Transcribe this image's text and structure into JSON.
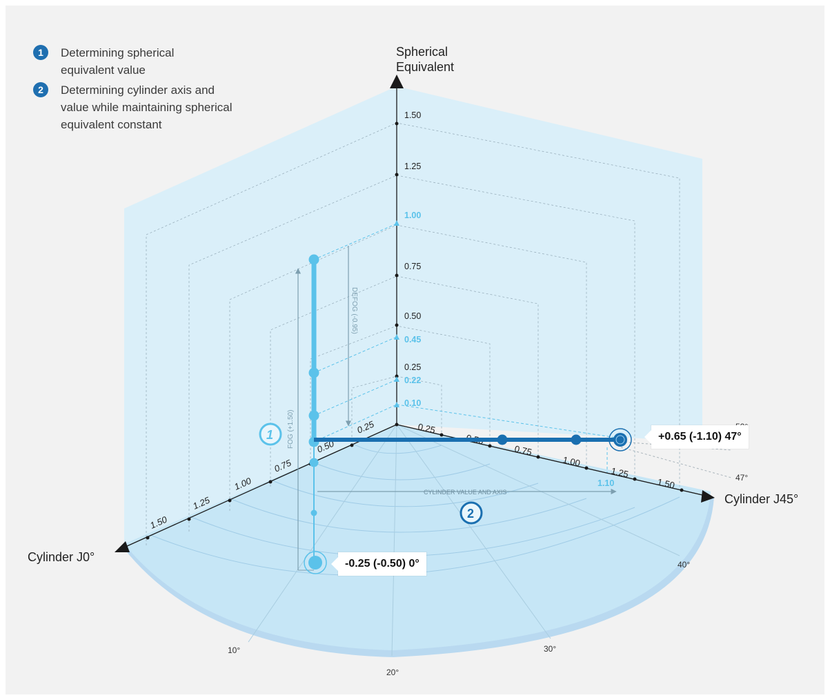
{
  "legend": [
    {
      "number": "1",
      "text": "Determining spherical equivalent value"
    },
    {
      "number": "2",
      "text": "Determining cylinder axis and value while maintaining spherical equivalent constant"
    }
  ],
  "axes": {
    "spherical_equivalent": {
      "title_line1": "Spherical",
      "title_line2": "Equivalent",
      "ticks": [
        "0.25",
        "0.50",
        "0.75",
        "1.25",
        "1.50"
      ]
    },
    "cylinder_j0": {
      "title": "Cylinder J0°",
      "ticks": [
        "0.25",
        "0.50",
        "0.75",
        "1.00",
        "1.25",
        "1.50"
      ]
    },
    "cylinder_j45": {
      "title": "Cylinder J45°",
      "ticks": [
        "0.25",
        "0.50",
        "0.75",
        "1.00",
        "1.25",
        "1.50"
      ]
    }
  },
  "highlighted_values": [
    "1.00",
    "0.45",
    "0.22",
    "0.10",
    "1.10"
  ],
  "angle_labels": [
    "10°",
    "20°",
    "30°",
    "40°",
    "47°",
    "50°"
  ],
  "annotations": {
    "fog": "FOG (+1.50)",
    "defog": "DEFOG (-0.95)",
    "cylinder_value_axis": "CYLINDER VALUE AND AXIS",
    "step_1": "1",
    "step_2": "2"
  },
  "callouts": {
    "end_point": "+0.65 (-1.10) 47°",
    "start_point": "-0.25 (-0.50) 0°"
  },
  "colors": {
    "light_blue": "#5bc2ea",
    "dark_blue": "#1a6fb0",
    "plane_fill": "#d9eff9",
    "axis": "#1a1a1a"
  }
}
